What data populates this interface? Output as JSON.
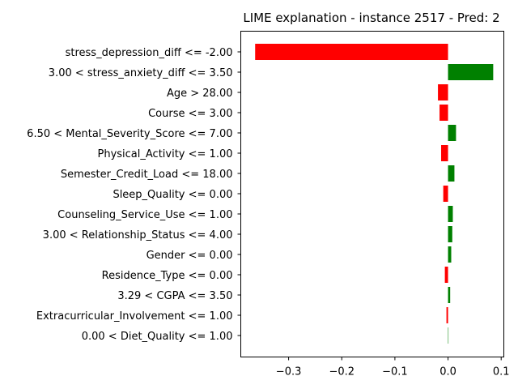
{
  "chart_data": {
    "type": "bar",
    "orientation": "horizontal",
    "title": "LIME explanation - instance 2517 - Pred: 2",
    "xlabel": "",
    "ylabel": "",
    "xlim": [
      -0.39,
      0.105
    ],
    "xticks": [
      -0.3,
      -0.2,
      -0.1,
      0.0,
      0.1
    ],
    "xtick_labels": [
      "−0.3",
      "−0.2",
      "−0.1",
      "0.0",
      "0.1"
    ],
    "grid": false,
    "colors": {
      "positive": "#008000",
      "negative": "#ff0000"
    },
    "categories": [
      "stress_depression_diff <= -2.00",
      "3.00 < stress_anxiety_diff <= 3.50",
      "Age > 28.00",
      "Course <= 3.00",
      "6.50 < Mental_Severity_Score <= 7.00",
      "Physical_Activity <= 1.00",
      "Semester_Credit_Load <= 18.00",
      "Sleep_Quality <= 0.00",
      "Counseling_Service_Use <= 1.00",
      "3.00 < Relationship_Status <= 4.00",
      "Gender <= 0.00",
      "Residence_Type <= 0.00",
      "3.29 < CGPA <= 3.50",
      "Extracurricular_Involvement <= 1.00",
      "0.00 < Diet_Quality <= 1.00"
    ],
    "values": [
      -0.363,
      0.085,
      -0.019,
      -0.016,
      0.015,
      -0.013,
      0.012,
      -0.009,
      0.009,
      0.008,
      0.006,
      -0.006,
      0.004,
      -0.003,
      0.0005
    ]
  }
}
